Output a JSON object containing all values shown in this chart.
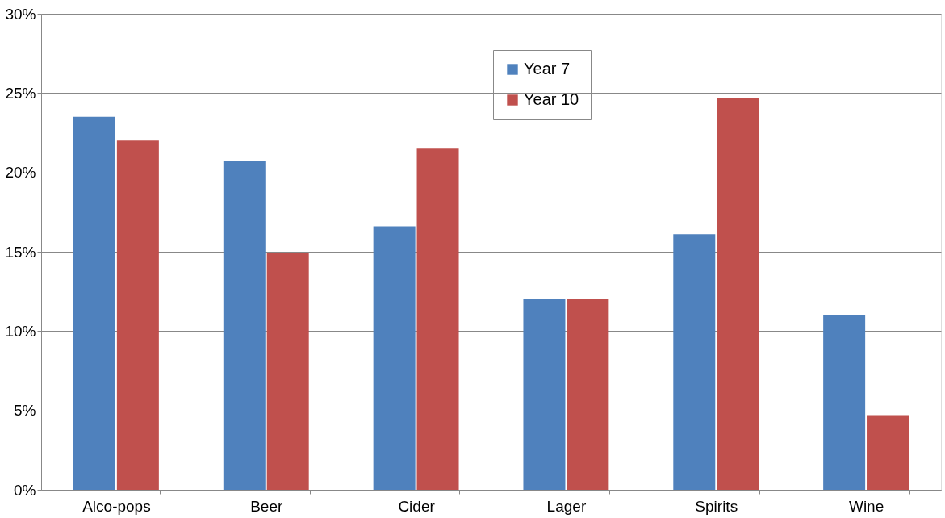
{
  "chart_data": {
    "type": "bar",
    "categories": [
      "Alco-pops",
      "Beer",
      "Cider",
      "Lager",
      "Spirits",
      "Wine"
    ],
    "series": [
      {
        "name": "Year 7",
        "color": "#4f81bd",
        "values": [
          23.5,
          20.7,
          16.6,
          12.0,
          16.1,
          11.0
        ]
      },
      {
        "name": "Year 10",
        "color": "#c0504d",
        "values": [
          22.0,
          14.9,
          21.5,
          12.0,
          24.7,
          4.7
        ]
      }
    ],
    "ylim": [
      0,
      30
    ],
    "yticks": [
      {
        "value": 0,
        "label": "0%"
      },
      {
        "value": 5,
        "label": "5%"
      },
      {
        "value": 10,
        "label": "10%"
      },
      {
        "value": 15,
        "label": "15%"
      },
      {
        "value": 20,
        "label": "20%"
      },
      {
        "value": 25,
        "label": "25%"
      },
      {
        "value": 30,
        "label": "30%"
      }
    ],
    "grid": "y",
    "legend": "top"
  }
}
